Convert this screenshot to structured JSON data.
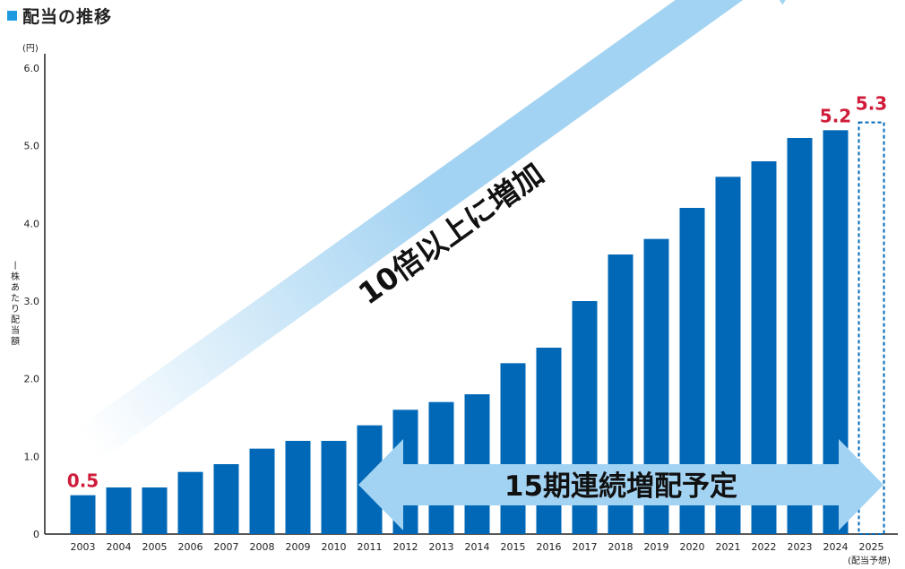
{
  "title": "配当の推移",
  "colors": {
    "bar": "#0068b7",
    "accent": "#1e9be0",
    "label_red": "#d01c3a",
    "arrow": "#a3d3f2"
  },
  "annotations": {
    "growth_arrow": "10倍以上に増加",
    "streak_arrow": "15期連続増配予定",
    "forecast_note": "(配当予想)",
    "value_first": "0.5",
    "value_2024": "5.2",
    "value_2025": "5.3"
  },
  "chart_data": {
    "type": "bar",
    "title": "配当の推移",
    "ylabel": "一株あたり配当額",
    "yunit": "(円)",
    "ylim": [
      0,
      6.0
    ],
    "yticks": [
      "0",
      "1.0",
      "2.0",
      "3.0",
      "4.0",
      "5.0",
      "6.0"
    ],
    "categories": [
      "2003",
      "2004",
      "2005",
      "2006",
      "2007",
      "2008",
      "2009",
      "2010",
      "2011",
      "2012",
      "2013",
      "2014",
      "2015",
      "2016",
      "2017",
      "2018",
      "2019",
      "2020",
      "2021",
      "2022",
      "2023",
      "2024",
      "2025"
    ],
    "values": [
      0.5,
      0.6,
      0.6,
      0.8,
      0.9,
      1.1,
      1.2,
      1.2,
      1.4,
      1.6,
      1.7,
      1.8,
      2.2,
      2.4,
      3.0,
      3.6,
      3.8,
      4.2,
      4.6,
      4.8,
      5.1,
      5.2,
      5.3
    ],
    "forecast_category": "2025",
    "grid": false
  }
}
